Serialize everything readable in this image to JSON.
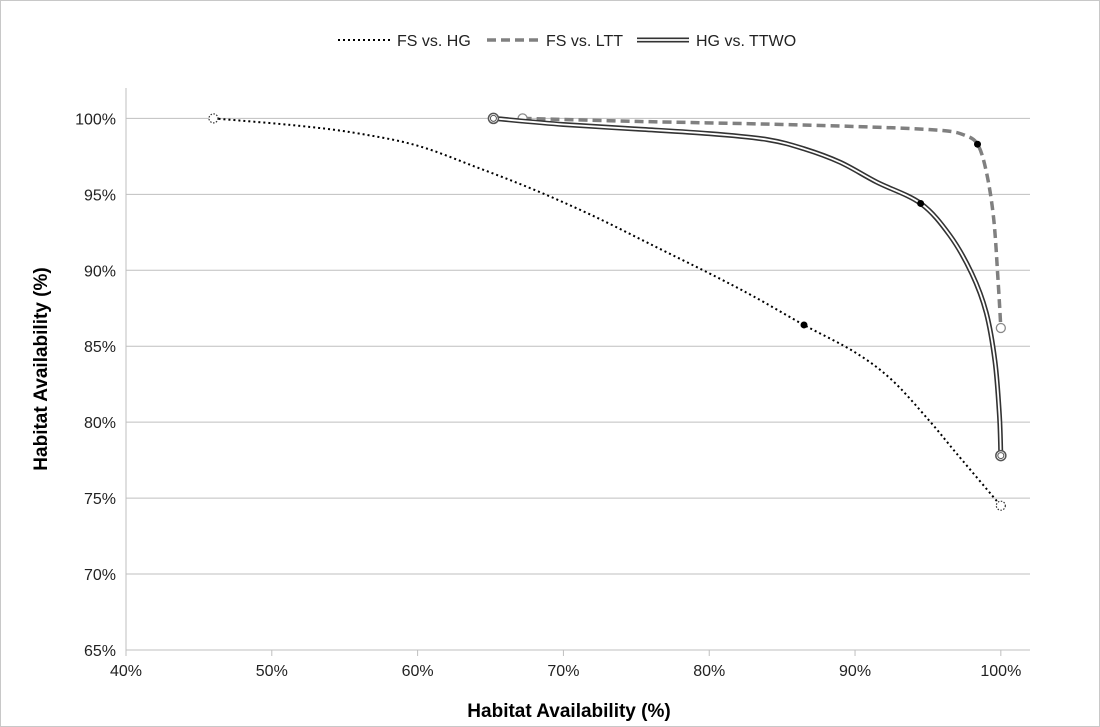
{
  "chart_data": {
    "type": "line",
    "xlabel": "Habitat Availability (%)",
    "ylabel": "Habitat Availability (%)",
    "xlim": [
      40,
      102
    ],
    "ylim": [
      65,
      102
    ],
    "x_ticks": [
      40,
      50,
      60,
      70,
      80,
      90,
      100
    ],
    "x_tick_labels": [
      "40%",
      "50%",
      "60%",
      "70%",
      "80%",
      "90%",
      "100%"
    ],
    "y_ticks": [
      65,
      70,
      75,
      80,
      85,
      90,
      95,
      100
    ],
    "y_tick_labels": [
      "65%",
      "70%",
      "75%",
      "80%",
      "85%",
      "90%",
      "95%",
      "100%"
    ],
    "grid": "horizontal",
    "legend_position": "top",
    "series": [
      {
        "name": "FS vs. HG",
        "style": "dotted",
        "color": "#000000",
        "points": [
          [
            46,
            100
          ],
          [
            52,
            99.5
          ],
          [
            56,
            99
          ],
          [
            60,
            98.2
          ],
          [
            64,
            96.8
          ],
          [
            68,
            95.3
          ],
          [
            72,
            93.6
          ],
          [
            76,
            91.7
          ],
          [
            80,
            89.8
          ],
          [
            83,
            88.3
          ],
          [
            86.5,
            86.4
          ],
          [
            90,
            84.6
          ],
          [
            92.5,
            82.8
          ],
          [
            95,
            80.2
          ],
          [
            97,
            77.9
          ],
          [
            100,
            74.5
          ]
        ],
        "endpoints": [
          [
            46,
            100
          ],
          [
            100,
            74.5
          ]
        ],
        "highlight": [
          86.5,
          86.4
        ]
      },
      {
        "name": "FS vs. LTT",
        "style": "dashed",
        "color": "#808080",
        "points": [
          [
            67.2,
            100
          ],
          [
            75,
            99.8
          ],
          [
            85,
            99.6
          ],
          [
            92,
            99.4
          ],
          [
            96,
            99.2
          ],
          [
            97.5,
            98.9
          ],
          [
            98.4,
            98.3
          ],
          [
            99,
            96.5
          ],
          [
            99.5,
            93.5
          ],
          [
            99.8,
            89.5
          ],
          [
            100,
            86.2
          ]
        ],
        "endpoints": [
          [
            67.2,
            100
          ],
          [
            100,
            86.2
          ]
        ],
        "highlight": [
          98.4,
          98.3
        ]
      },
      {
        "name": "HG vs. TTWO",
        "style": "double",
        "color": "#333333",
        "points": [
          [
            65.2,
            100
          ],
          [
            70,
            99.6
          ],
          [
            75,
            99.3
          ],
          [
            80,
            99
          ],
          [
            84,
            98.6
          ],
          [
            86.5,
            98
          ],
          [
            89,
            97.1
          ],
          [
            91.5,
            95.8
          ],
          [
            94.5,
            94.4
          ],
          [
            96.5,
            92.3
          ],
          [
            98,
            89.8
          ],
          [
            99,
            87.2
          ],
          [
            99.6,
            84
          ],
          [
            99.9,
            80.5
          ],
          [
            100,
            77.8
          ]
        ],
        "endpoints": [
          [
            65.2,
            100
          ],
          [
            100,
            77.8
          ]
        ],
        "highlight": [
          94.5,
          94.4
        ]
      }
    ]
  }
}
